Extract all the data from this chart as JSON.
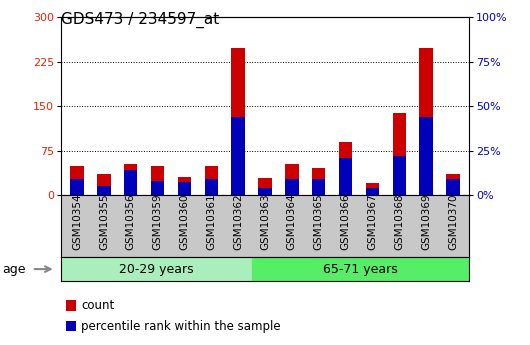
{
  "title": "GDS473 / 234597_at",
  "samples": [
    "GSM10354",
    "GSM10355",
    "GSM10356",
    "GSM10359",
    "GSM10360",
    "GSM10361",
    "GSM10362",
    "GSM10363",
    "GSM10364",
    "GSM10365",
    "GSM10366",
    "GSM10367",
    "GSM10368",
    "GSM10369",
    "GSM10370"
  ],
  "count_values": [
    48,
    35,
    53,
    48,
    30,
    48,
    248,
    28,
    52,
    45,
    90,
    20,
    138,
    248,
    35
  ],
  "percentile_values": [
    9,
    5,
    14,
    8,
    7,
    9,
    44,
    4,
    9,
    9,
    21,
    4,
    22,
    44,
    9
  ],
  "left_ylim": [
    0,
    300
  ],
  "right_ylim": [
    0,
    100
  ],
  "left_yticks": [
    0,
    75,
    150,
    225,
    300
  ],
  "right_yticks": [
    0,
    25,
    50,
    75,
    100
  ],
  "right_yticklabels": [
    "0%",
    "25%",
    "50%",
    "75%",
    "100%"
  ],
  "left_tick_color": "#ee2200",
  "right_tick_color": "#0000cc",
  "bar_color_red": "#cc0000",
  "bar_color_blue": "#0000bb",
  "group1_label": "20-29 years",
  "group2_label": "65-71 years",
  "group1_count": 7,
  "age_label": "age",
  "legend_count": "count",
  "legend_percentile": "percentile rank within the sample",
  "bar_width": 0.5,
  "group_bg1": "#aaeebb",
  "group_bg2": "#55ee66",
  "xtick_bg": "#c8c8c8",
  "plot_bg": "#ffffff",
  "title_fontsize": 11,
  "xtick_fontsize": 7.5,
  "ytick_fontsize": 8,
  "group_fontsize": 9,
  "legend_fontsize": 8.5,
  "dotted_lines": [
    75,
    150,
    225
  ],
  "n_samples": 15
}
